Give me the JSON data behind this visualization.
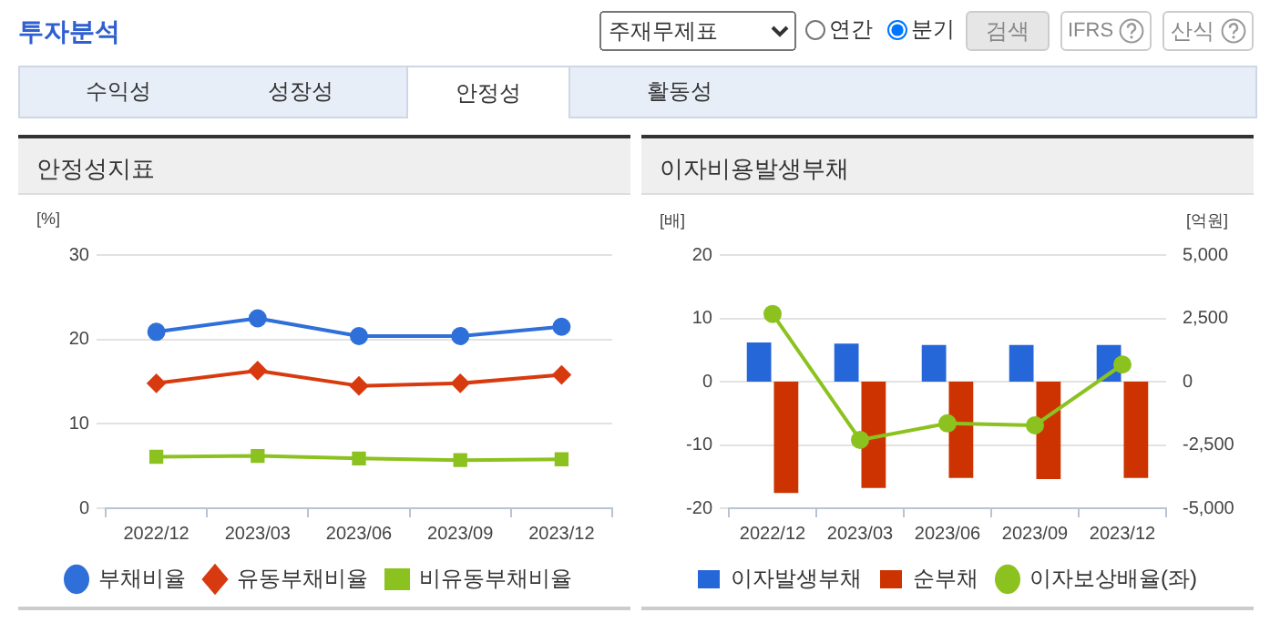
{
  "chart_data": [
    {
      "type": "other",
      "title": "투자분석",
      "annotations": [
        "주재무제표",
        "연간",
        "분기",
        "검색",
        "IFRS",
        "산식",
        "수익성",
        "성장성",
        "안정성",
        "활동성"
      ]
    },
    {
      "type": "line",
      "title": "안정성지표",
      "ylabel": "[%]",
      "categories": [
        "2022/12",
        "2023/03",
        "2023/06",
        "2023/09",
        "2023/12"
      ],
      "ylim": [
        0,
        30
      ],
      "yticks": [
        0,
        10,
        20,
        30
      ],
      "grid": "y",
      "legend": "bottom",
      "series": [
        {
          "name": "부채비율",
          "color": "#2f6fd9",
          "marker": "circle",
          "values": [
            20.9,
            22.5,
            20.4,
            20.4,
            21.5
          ]
        },
        {
          "name": "유동부채비율",
          "color": "#d83a0f",
          "marker": "diamond",
          "values": [
            14.8,
            16.3,
            14.5,
            14.8,
            15.8
          ]
        },
        {
          "name": "비유동부채비율",
          "color": "#8cc21f",
          "marker": "square",
          "values": [
            6.1,
            6.2,
            5.9,
            5.7,
            5.8
          ]
        }
      ]
    },
    {
      "type": "bar",
      "title": "이자비용발생부채",
      "ylabel": "[배]",
      "y2label": "[억원]",
      "categories": [
        "2022/12",
        "2023/03",
        "2023/06",
        "2023/09",
        "2023/12"
      ],
      "ylim": [
        -20,
        20
      ],
      "yticks": [
        -20,
        -10,
        0,
        10,
        20
      ],
      "y2lim": [
        -5000,
        5000
      ],
      "y2ticks": [
        {
          "value": -5000,
          "label": "-5,000"
        },
        {
          "value": -2500,
          "label": "-2,500"
        },
        0,
        {
          "value": 2500,
          "label": "2,500"
        },
        {
          "value": 5000,
          "label": "5,000"
        }
      ],
      "grid": "y",
      "legend": "bottom",
      "series": [
        {
          "name": "이자발생부채",
          "color": "#2566d8",
          "axis": "y2",
          "values": [
            1550,
            1500,
            1450,
            1450,
            1450
          ]
        },
        {
          "name": "순부채",
          "color": "#cc3300",
          "axis": "y2",
          "values": [
            -4400,
            -4200,
            -3800,
            -3850,
            -3800
          ]
        },
        {
          "name": "이자보상배율(좌)",
          "type": "line",
          "color": "#8cc21f",
          "marker": "circle",
          "values": [
            10.7,
            -9.2,
            -6.6,
            -6.9,
            2.7
          ]
        }
      ]
    }
  ]
}
